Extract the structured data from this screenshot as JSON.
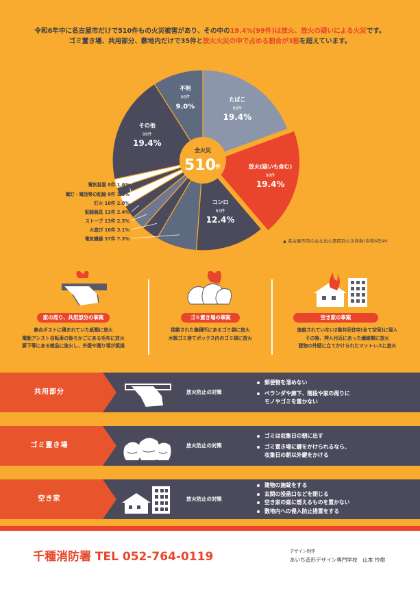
{
  "intro": {
    "line1_a": "令和6年中に名古屋市だけで510件もの火災被害があり、その中の",
    "line1_b": "19.4%(99件)は放火、放火の疑いによる火災",
    "line1_c": "です。",
    "line2_a": "ゴミ置き場、共用部分、敷地内だけで35件と",
    "line2_b": "放火火災の中で占める割合が3割",
    "line2_c": "を超えています。"
  },
  "chart_data": {
    "type": "pie",
    "title": "",
    "center_label": "全火災",
    "center_value": "510",
    "center_unit": "件",
    "source": "▲ 名古屋市内の主な出火原因別火災件数(令和6年中)",
    "slices": [
      {
        "name": "たばこ",
        "count": "99件",
        "percent": "19.4%",
        "value": 19.4,
        "color": "#8b96aa"
      },
      {
        "name": "放火",
        "name_sub": "(疑いも含む)",
        "count": "99件",
        "percent": "19.4%",
        "value": 19.4,
        "color": "#e8452c"
      },
      {
        "name": "コンロ",
        "count": "63件",
        "percent": "12.4%",
        "value": 12.4,
        "color": "#4a4a5c"
      },
      {
        "name": "電気機器",
        "count": "37件",
        "percent": "7.3%",
        "value": 7.3,
        "color": "#5e6a80"
      },
      {
        "name": "火遊び",
        "count": "16件",
        "percent": "3.1%",
        "value": 3.1,
        "color": "#4a4a5c"
      },
      {
        "name": "ストーブ",
        "count": "13件",
        "percent": "2.5%",
        "value": 2.5,
        "color": "#6e7890"
      },
      {
        "name": "配線器具",
        "count": "12件",
        "percent": "2.4%",
        "value": 2.4,
        "color": "#4a4a5c"
      },
      {
        "name": "灯火",
        "count": "10件",
        "percent": "2.0%",
        "value": 2.0,
        "color": "#ffffff"
      },
      {
        "name": "電灯・電話等の配線",
        "count": "8件",
        "percent": "1.6%",
        "value": 1.6,
        "color": "#4a4a5c"
      },
      {
        "name": "電気装置",
        "count": "8件",
        "percent": "1.6%",
        "value": 1.6,
        "color": "#ffffff"
      },
      {
        "name": "その他",
        "count": "99件",
        "percent": "19.4%",
        "value": 19.4,
        "color": "#4a4a5c"
      },
      {
        "name": "不明",
        "count": "46件",
        "percent": "9.0%",
        "value": 9.0,
        "color": "#5e6a80"
      }
    ]
  },
  "cases": [
    {
      "title": "家の周り、共用部分の事案",
      "lines": [
        "集合ポストに積まれていた紙類に放火",
        "電動アシスト自転車の後ろかごにある毛布に放火",
        "廊下等にある雑品に放火し、外壁や踊り場が焼損"
      ]
    },
    {
      "title": "ゴミ置き場の事案",
      "lines": [
        "閉鎖された集積所にあるゴミ袋に放火",
        "木製ゴミ捨てボックス内のゴミ袋に放火"
      ]
    },
    {
      "title": "空き家の事案",
      "lines": [
        "施錠されていない2階共同住宅(全て空室)に侵入",
        "その後、押入付近にあった繊維類に放火",
        "建物の外壁に立てかけられたマットレスに放火"
      ]
    }
  ],
  "measures": [
    {
      "label": "共用部分",
      "tag": "放火防止の対策",
      "items": [
        "郵便物を溜めない",
        "ベランダや廊下、階段や家の周りに",
        "モノやゴミを置かない"
      ]
    },
    {
      "label": "ゴミ置き場",
      "tag": "放火防止の対策",
      "items": [
        "ゴミは収集日の朝に出す",
        "ゴミ置き場に鍵をかけられるなら、",
        "収集日の朝以外鍵をかける"
      ]
    },
    {
      "label": "空き家",
      "tag": "放火防止の対策",
      "items": [
        "建物の施錠をする",
        "玄関の投函口などを閉じる",
        "空き家の庭に燃えるものを置かない",
        "敷地内への侵入防止措置をする"
      ]
    }
  ],
  "footer": {
    "tel": "千種消防署 TEL 052-764-0119",
    "design_label": "デザイン制作",
    "design_name": "あいち造形デザイン専門学校　山本 怜樹"
  },
  "colors": {
    "orange": "#f9ab2f",
    "red": "#e8452c",
    "navy": "#4a4a5c",
    "slate": "#8b96aa"
  }
}
